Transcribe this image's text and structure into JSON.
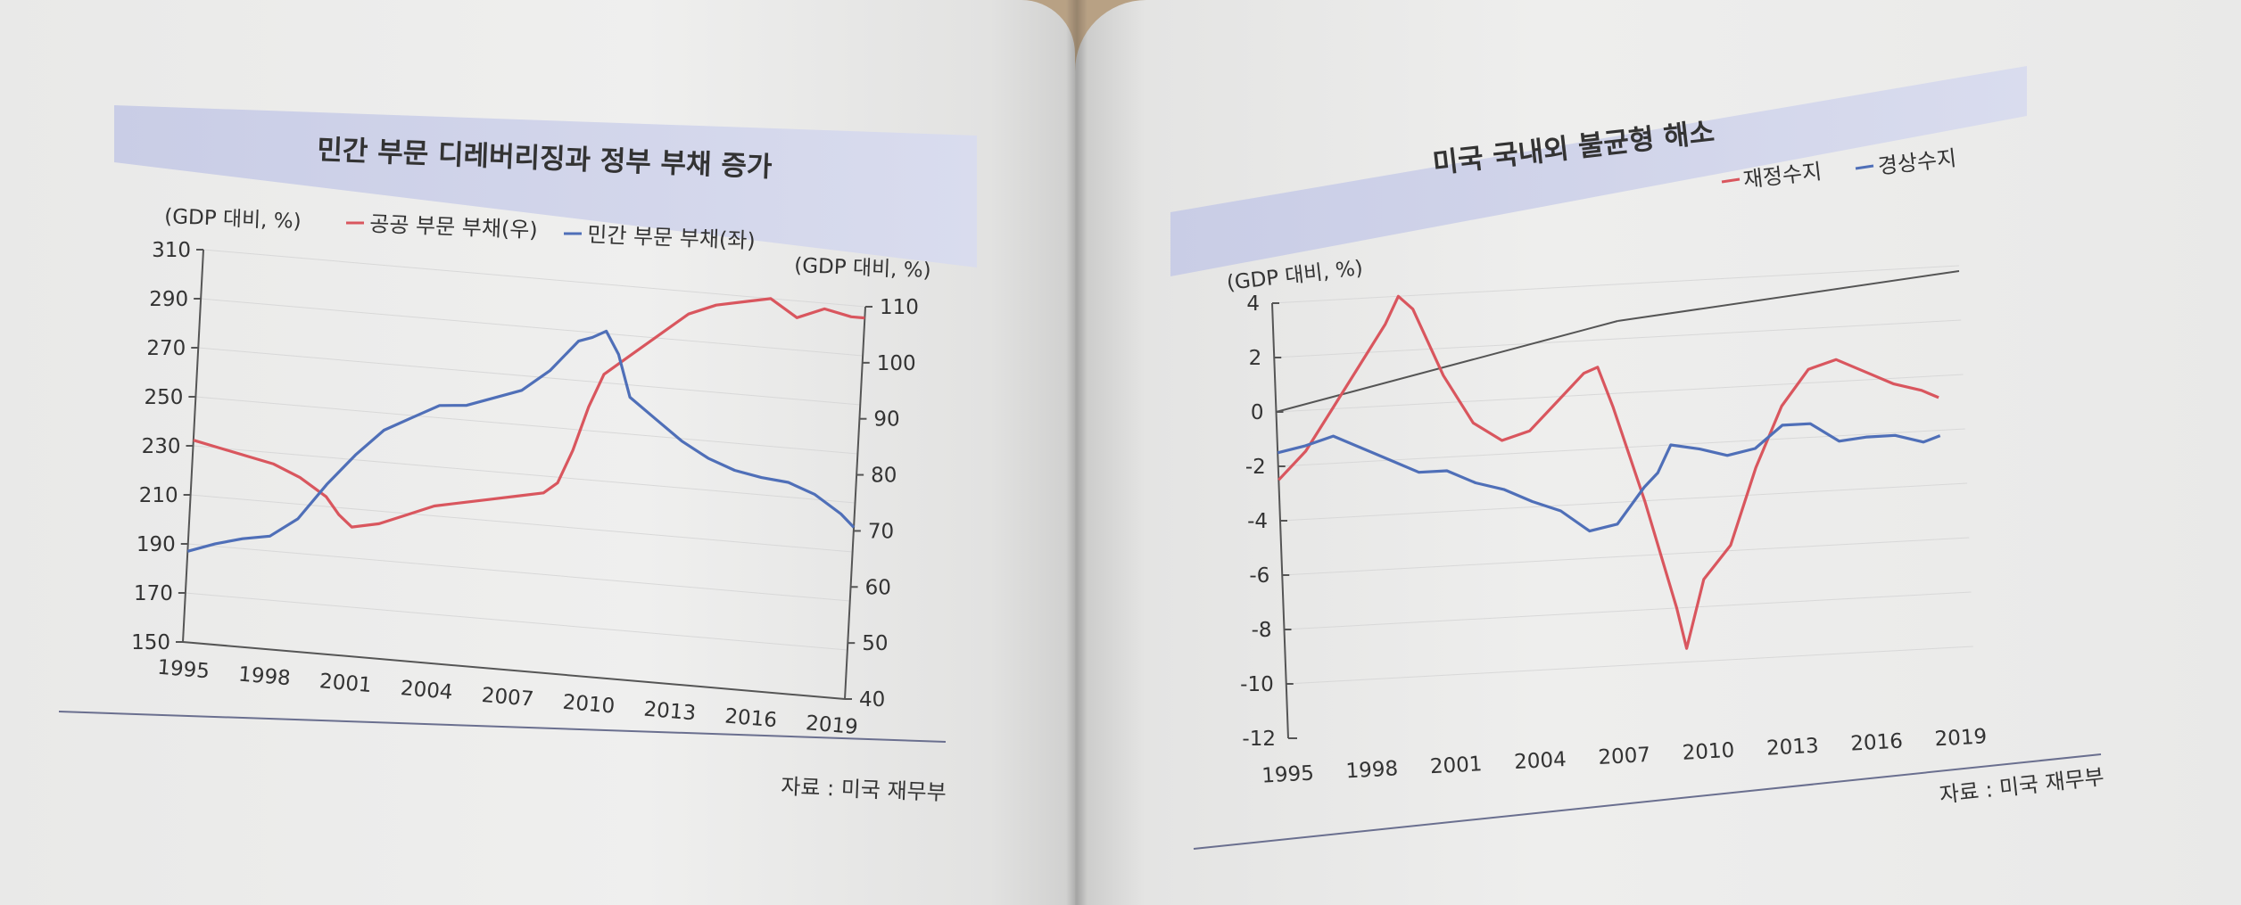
{
  "chart_data": [
    {
      "type": "line",
      "title": "민간 부문 디레버리징과 정부 부채 증가",
      "y_left_label": "(GDP 대비, %)",
      "y_right_label": "(GDP 대비, %)",
      "y_left_ticks": [
        "310",
        "290",
        "270",
        "250",
        "230",
        "210",
        "190",
        "170",
        "150"
      ],
      "y_right_ticks": [
        "110",
        "100",
        "90",
        "80",
        "70",
        "60",
        "50",
        "40"
      ],
      "x_ticks": [
        "1995",
        "1998",
        "2001",
        "2004",
        "2007",
        "2010",
        "2013",
        "2016",
        "2019"
      ],
      "ylim_left": [
        150,
        310
      ],
      "ylim_right": [
        40,
        110
      ],
      "xlim": [
        1995,
        2019.5
      ],
      "source": "자료 : 미국 재무부",
      "series": [
        {
          "name": "공공 부문 부채(우)",
          "axis": "right",
          "color": "#d9565e",
          "x": [
            1995,
            1996,
            1997,
            1998,
            1999,
            2000,
            2000.5,
            2001,
            2002,
            2003,
            2004,
            2005,
            2006,
            2007,
            2008,
            2008.5,
            2009,
            2009.5,
            2010,
            2011,
            2012,
            2013,
            2014,
            2015,
            2016,
            2017,
            2018,
            2019,
            2019.5
          ],
          "y": [
            76,
            75,
            74,
            73,
            71,
            68,
            65,
            63,
            64,
            66,
            68,
            69,
            70,
            71,
            72,
            74,
            80,
            88,
            94,
            98,
            102,
            106,
            108,
            109,
            110,
            107,
            109,
            108,
            108
          ]
        },
        {
          "name": "민간 부문 부채(좌)",
          "axis": "left",
          "color": "#4f6fb8",
          "x": [
            1995,
            1996,
            1997,
            1998,
            1999,
            2000,
            2001,
            2002,
            2003,
            2004,
            2005,
            2006,
            2007,
            2008,
            2009,
            2009.5,
            2010,
            2010.5,
            2011,
            2012,
            2013,
            2014,
            2015,
            2016,
            2017,
            2018,
            2019,
            2019.5
          ],
          "y": [
            187,
            191,
            194,
            196,
            204,
            219,
            232,
            243,
            249,
            255,
            256,
            260,
            264,
            273,
            286,
            288,
            291,
            282,
            265,
            257,
            249,
            243,
            239,
            237,
            236,
            232,
            225,
            220
          ]
        }
      ]
    },
    {
      "type": "line",
      "title": "미국 국내외 불균형 해소",
      "ylabel": "(GDP 대비, %)",
      "y_ticks": [
        "4",
        "2",
        "0",
        "-2",
        "-4",
        "-6",
        "-8",
        "-10",
        "-12"
      ],
      "x_ticks": [
        "1995",
        "1998",
        "2001",
        "2004",
        "2007",
        "2010",
        "2013",
        "2016",
        "2019"
      ],
      "ylim": [
        -12,
        4
      ],
      "xlim": [
        1995,
        2019.5
      ],
      "source": "자료 : 미국 재무부",
      "series": [
        {
          "name": "재정수지",
          "color": "#d9565e",
          "x": [
            1995,
            1996,
            1997,
            1998,
            1999,
            1999.5,
            2000,
            2001,
            2002,
            2003,
            2004,
            2005,
            2006,
            2006.5,
            2007,
            2008,
            2009,
            2009.3,
            2010,
            2011,
            2012,
            2013,
            2014,
            2015,
            2016,
            2017,
            2018,
            2018.6
          ],
          "y": [
            -2.5,
            -1.5,
            0,
            1.5,
            3,
            4,
            3.5,
            1,
            -0.8,
            -1.5,
            -1.2,
            -0.2,
            0.8,
            1,
            -0.5,
            -4,
            -8,
            -9.5,
            -7,
            -5.8,
            -3,
            -0.8,
            0.5,
            0.8,
            0.3,
            -0.2,
            -0.5,
            -0.8
          ]
        },
        {
          "name": "경상수지",
          "color": "#4f6fb8",
          "x": [
            1995,
            1996,
            1997,
            1998,
            1999,
            2000,
            2001,
            2002,
            2003,
            2004,
            2005,
            2006,
            2007,
            2008,
            2008.5,
            2009,
            2010,
            2011,
            2012,
            2013,
            2014,
            2015,
            2016,
            2017,
            2018,
            2018.6
          ],
          "y": [
            -1.5,
            -1.3,
            -1,
            -1.5,
            -2,
            -2.5,
            -2.5,
            -3,
            -3.3,
            -3.8,
            -4.2,
            -5,
            -4.8,
            -3.5,
            -3,
            -2,
            -2.2,
            -2.5,
            -2.3,
            -1.5,
            -1.5,
            -2.2,
            -2.1,
            -2.1,
            -2.4,
            -2.2
          ]
        }
      ]
    }
  ]
}
